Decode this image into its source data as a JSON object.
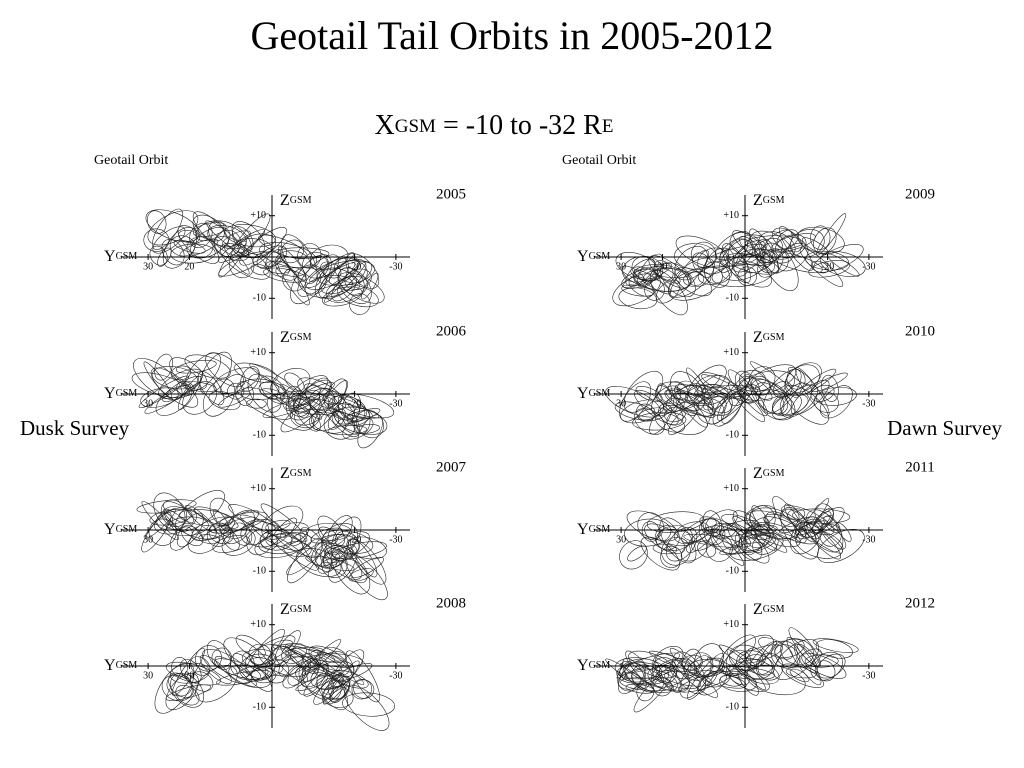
{
  "title": "Geotail Tail Orbits in 2005-2012",
  "subtitle": {
    "x": "X",
    "x_sub": "GSM",
    "range": " = -10 to -32 R",
    "r_sub": "E"
  },
  "columns": [
    {
      "caption": "Geotail Orbit",
      "survey": "Dusk Survey",
      "panels": [
        {
          "year": "2005",
          "y_label": "Y",
          "y_sub": "GSM",
          "z_label": "Z",
          "z_sub": "GSM",
          "yticks": [
            "30",
            "20",
            "-20",
            "-30"
          ],
          "zticks": [
            "+10",
            "-10"
          ]
        },
        {
          "year": "2006",
          "y_label": "Y",
          "y_sub": "GSM",
          "z_label": "Z",
          "z_sub": "GSM",
          "yticks": [
            "30",
            "-20",
            "-30"
          ],
          "zticks": [
            "+10",
            "-10"
          ]
        },
        {
          "year": "2007",
          "y_label": "Y",
          "y_sub": "GSM",
          "z_label": "Z",
          "z_sub": "GSM",
          "yticks": [
            "30",
            "-20",
            "-30"
          ],
          "zticks": [
            "+10",
            "-10"
          ]
        },
        {
          "year": "2008",
          "y_label": "Y",
          "y_sub": "GSM",
          "z_label": "Z",
          "z_sub": "GSM",
          "yticks": [
            "30",
            "20",
            "-30"
          ],
          "zticks": [
            "+10",
            "-10"
          ]
        }
      ]
    },
    {
      "caption": "Geotail Orbit",
      "survey": "Dawn Survey",
      "panels": [
        {
          "year": "2009",
          "y_label": "Y",
          "y_sub": "GSM",
          "z_label": "Z",
          "z_sub": "GSM",
          "yticks": [
            "30",
            "20",
            "-20",
            "-30"
          ],
          "zticks": [
            "+10",
            "-10"
          ]
        },
        {
          "year": "2010",
          "y_label": "Y",
          "y_sub": "GSM",
          "z_label": "Z",
          "z_sub": "GSM",
          "yticks": [
            "30",
            "-30"
          ],
          "zticks": [
            "+10",
            "-10"
          ]
        },
        {
          "year": "2011",
          "y_label": "Y",
          "y_sub": "GSM",
          "z_label": "Z",
          "z_sub": "GSM",
          "yticks": [
            "30",
            "-30"
          ],
          "zticks": [
            "+10",
            "-10"
          ]
        },
        {
          "year": "2012",
          "y_label": "Y",
          "y_sub": "GSM",
          "z_label": "Z",
          "z_sub": "GSM",
          "yticks": [
            "30",
            "-30"
          ],
          "zticks": [
            "+10",
            "-10"
          ]
        }
      ]
    }
  ]
}
